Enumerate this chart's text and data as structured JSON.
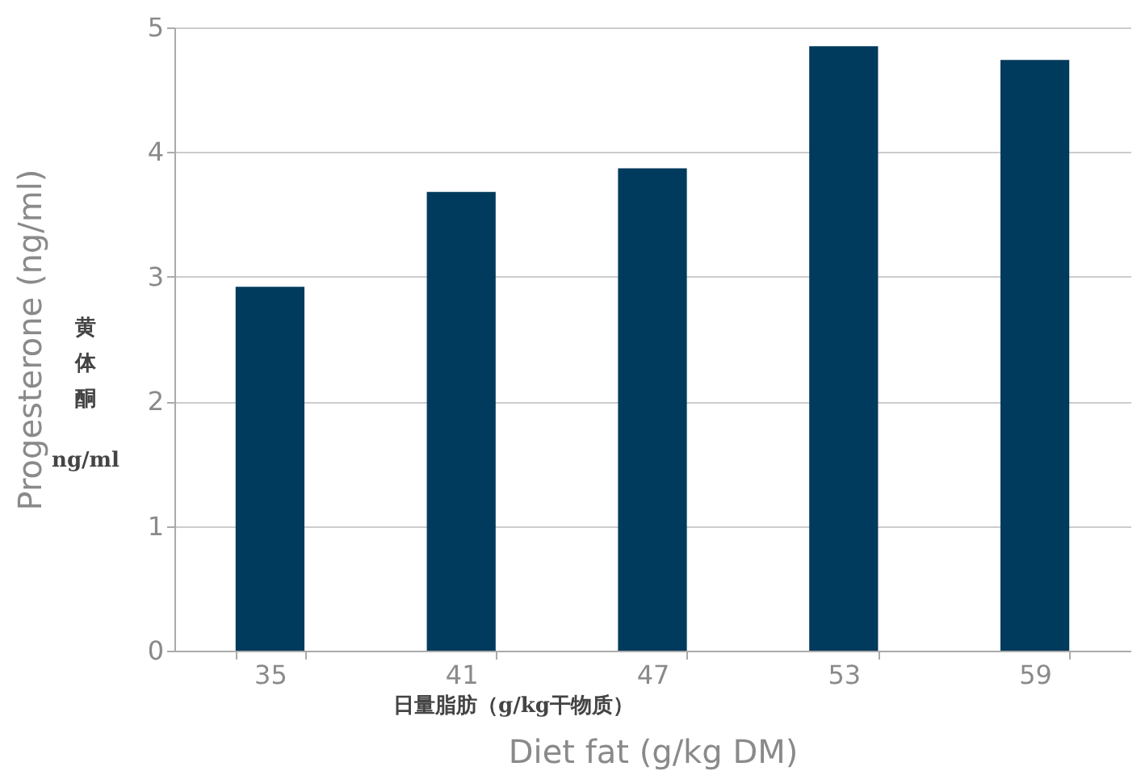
{
  "chart_data": {
    "type": "bar",
    "xlabel": "Diet fat (g/kg DM)",
    "ylabel": "Progesterone (ng/ml)",
    "categories": [
      "35",
      "41",
      "47",
      "53",
      "59"
    ],
    "values": [
      2.92,
      3.68,
      3.87,
      4.85,
      4.74
    ],
    "color": "#003a5c",
    "ylim": [
      0,
      5
    ],
    "yticks": [
      0,
      1,
      2,
      3,
      4,
      5
    ],
    "grid": "y",
    "annotations": [
      "黄体酮",
      "ng/ml",
      "日量脂肪（g/kg干物质）"
    ]
  }
}
